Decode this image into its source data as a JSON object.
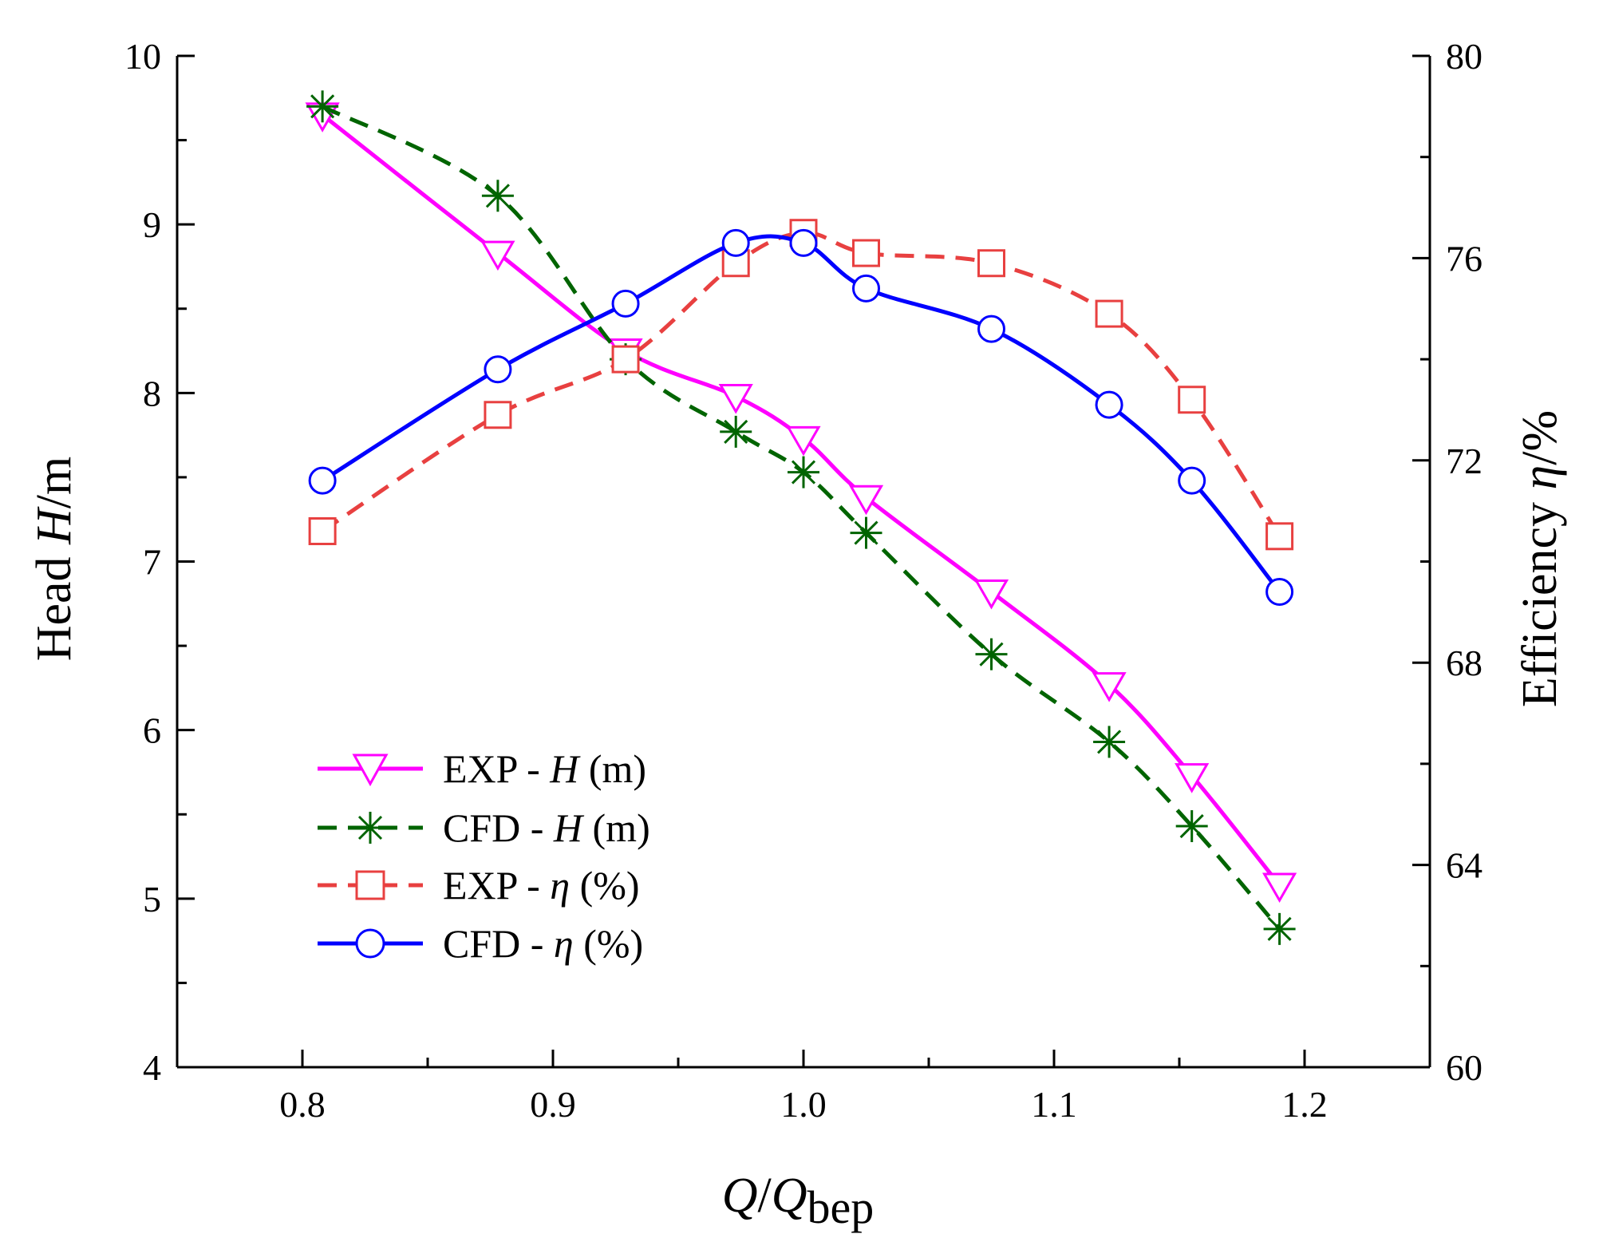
{
  "chart_data": {
    "type": "line",
    "title": "",
    "xlabel": {
      "main": "Q",
      "sep": "/",
      "sym": "Q",
      "sub": "bep"
    },
    "ylabel_left": {
      "prefix": "Head ",
      "sym": "H",
      "suffix": "/m"
    },
    "ylabel_right": {
      "prefix": "Efficiency ",
      "sym": "η",
      "suffix": "/%"
    },
    "xlim": [
      0.75,
      1.25
    ],
    "ylim_left": [
      4,
      10
    ],
    "ylim_right": [
      60,
      80
    ],
    "xticks": [
      "0.8",
      "0.9",
      "1.0",
      "1.1",
      "1.2"
    ],
    "yticks_left": [
      "4",
      "5",
      "6",
      "7",
      "8",
      "9",
      "10"
    ],
    "yticks_right": [
      "60",
      "64",
      "68",
      "72",
      "76",
      "80"
    ],
    "legend_position": "center-left",
    "series": [
      {
        "name": "EXP - H (m)",
        "legend": {
          "prefix": "EXP - ",
          "sym": "H",
          "suffix": " (m)"
        },
        "axis": "left",
        "color": "#ff00ff",
        "dash": "solid",
        "marker": "triangle-down",
        "x": [
          0.808,
          0.878,
          0.929,
          0.973,
          1.0,
          1.025,
          1.075,
          1.122,
          1.155,
          1.19
        ],
        "y": [
          9.65,
          8.83,
          8.25,
          7.98,
          7.73,
          7.38,
          6.82,
          6.27,
          5.73,
          5.08
        ]
      },
      {
        "name": "CFD - H (m)",
        "legend": {
          "prefix": "CFD - ",
          "sym": "H",
          "suffix": " (m)"
        },
        "axis": "left",
        "color": "#006400",
        "dash": "dashed",
        "marker": "asterisk",
        "x": [
          0.808,
          0.878,
          0.929,
          0.973,
          1.0,
          1.025,
          1.075,
          1.122,
          1.155,
          1.19
        ],
        "y": [
          9.7,
          9.17,
          8.2,
          7.77,
          7.53,
          7.17,
          6.45,
          5.93,
          5.43,
          4.82
        ]
      },
      {
        "name": "EXP - η (%)",
        "legend": {
          "prefix": "EXP - ",
          "sym": "η",
          "suffix": " (%)"
        },
        "axis": "right",
        "color": "#e84040",
        "dash": "dashed",
        "marker": "square",
        "x": [
          0.808,
          0.878,
          0.929,
          0.973,
          1.0,
          1.025,
          1.075,
          1.122,
          1.155,
          1.19
        ],
        "y": [
          70.6,
          72.9,
          74.0,
          75.9,
          76.5,
          76.1,
          75.9,
          74.9,
          73.2,
          70.5
        ]
      },
      {
        "name": "CFD - η (%)",
        "legend": {
          "prefix": "CFD - ",
          "sym": "η",
          "suffix": " (%)"
        },
        "axis": "right",
        "color": "#0000ff",
        "dash": "solid",
        "marker": "circle",
        "x": [
          0.808,
          0.878,
          0.929,
          0.973,
          1.0,
          1.025,
          1.075,
          1.122,
          1.155,
          1.19
        ],
        "y": [
          71.6,
          73.8,
          75.1,
          76.3,
          76.3,
          75.4,
          74.6,
          73.1,
          71.6,
          69.4
        ]
      }
    ]
  }
}
